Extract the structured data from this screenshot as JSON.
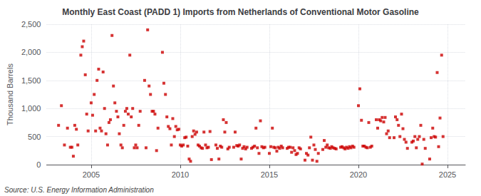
{
  "chart_data": {
    "type": "scatter",
    "title": "Monthly East Coast (PADD 1) Imports from Netherlands of Conventional Motor Gasoline",
    "ylabel": "Thousand Barrels",
    "annotation": "Source: U.S. Energy Information Administration",
    "color": "#cc0000",
    "marker": "square",
    "grid": true,
    "xlim": [
      2002.5,
      2026.0
    ],
    "xticks": [
      2005,
      2010,
      2015,
      2020,
      2025
    ],
    "ylim": [
      0,
      2500
    ],
    "yticks": [
      0,
      500,
      {
        "value": 1000,
        "label": "1,000"
      },
      {
        "value": 1500,
        "label": "1,500"
      },
      {
        "value": 2000,
        "label": "2,000"
      },
      {
        "value": 2500,
        "label": "2,500"
      }
    ],
    "x": [
      2003.17,
      2003.33,
      2003.5,
      2003.67,
      2003.83,
      2003.92,
      2004.0,
      2004.08,
      2004.17,
      2004.25,
      2004.42,
      2004.5,
      2004.58,
      2004.67,
      2004.75,
      2004.83,
      2005.0,
      2005.08,
      2005.17,
      2005.25,
      2005.33,
      2005.42,
      2005.5,
      2005.58,
      2005.67,
      2005.75,
      2005.83,
      2005.92,
      2006.0,
      2006.08,
      2006.17,
      2006.25,
      2006.33,
      2006.42,
      2006.5,
      2006.58,
      2006.67,
      2006.75,
      2006.83,
      2006.92,
      2007.0,
      2007.08,
      2007.17,
      2007.25,
      2007.33,
      2007.42,
      2007.5,
      2007.58,
      2007.67,
      2007.75,
      2008.0,
      2008.08,
      2008.17,
      2008.25,
      2008.33,
      2008.42,
      2008.5,
      2008.58,
      2008.67,
      2008.75,
      2009.0,
      2009.08,
      2009.17,
      2009.25,
      2009.33,
      2009.42,
      2009.5,
      2009.58,
      2009.67,
      2009.75,
      2009.83,
      2009.92,
      2010.0,
      2010.08,
      2010.17,
      2010.25,
      2010.33,
      2010.42,
      2010.5,
      2010.58,
      2010.67,
      2010.75,
      2010.83,
      2010.92,
      2011.0,
      2011.08,
      2011.17,
      2011.25,
      2011.33,
      2011.42,
      2011.5,
      2011.58,
      2011.67,
      2011.75,
      2012.0,
      2012.08,
      2012.17,
      2012.25,
      2012.33,
      2012.42,
      2012.5,
      2012.58,
      2012.67,
      2012.75,
      2013.0,
      2013.08,
      2013.17,
      2013.25,
      2013.33,
      2013.42,
      2013.5,
      2013.58,
      2013.67,
      2013.75,
      2014.0,
      2014.08,
      2014.17,
      2014.25,
      2014.33,
      2014.42,
      2014.5,
      2014.58,
      2014.67,
      2014.75,
      2015.0,
      2015.08,
      2015.17,
      2015.25,
      2015.33,
      2015.42,
      2015.5,
      2015.58,
      2015.67,
      2015.75,
      2016.0,
      2016.08,
      2016.17,
      2016.25,
      2016.33,
      2016.42,
      2016.5,
      2016.58,
      2016.67,
      2016.75,
      2017.0,
      2017.08,
      2017.17,
      2017.25,
      2017.33,
      2017.42,
      2017.5,
      2017.58,
      2017.67,
      2017.75,
      2018.0,
      2018.08,
      2018.17,
      2018.25,
      2018.33,
      2018.42,
      2018.5,
      2018.58,
      2018.67,
      2018.75,
      2019.0,
      2019.08,
      2019.17,
      2019.25,
      2019.33,
      2019.42,
      2019.5,
      2019.58,
      2019.67,
      2019.75,
      2020.0,
      2020.08,
      2020.17,
      2020.25,
      2020.33,
      2020.42,
      2020.5,
      2020.58,
      2020.67,
      2020.75,
      2021.0,
      2021.08,
      2021.17,
      2021.25,
      2021.33,
      2021.42,
      2021.5,
      2021.58,
      2021.67,
      2021.75,
      2022.0,
      2022.08,
      2022.17,
      2022.25,
      2022.33,
      2022.42,
      2022.5,
      2022.58,
      2022.67,
      2022.75,
      2023.0,
      2023.08,
      2023.17,
      2023.25,
      2023.33,
      2023.42,
      2023.5,
      2023.58,
      2023.67,
      2023.75,
      2024.0,
      2024.08,
      2024.17,
      2024.25,
      2024.33,
      2024.42,
      2024.5,
      2024.58,
      2024.67,
      2024.75
    ],
    "values": [
      700,
      1050,
      350,
      650,
      310,
      310,
      150,
      700,
      630,
      350,
      1950,
      2100,
      2200,
      1600,
      900,
      600,
      1100,
      880,
      1250,
      600,
      1500,
      1700,
      650,
      600,
      1650,
      1000,
      550,
      350,
      750,
      800,
      2300,
      1400,
      1100,
      950,
      850,
      550,
      350,
      300,
      700,
      950,
      1000,
      900,
      1950,
      850,
      1000,
      300,
      350,
      300,
      700,
      950,
      1500,
      300,
      2400,
      1400,
      1250,
      950,
      950,
      900,
      250,
      650,
      2000,
      1450,
      1250,
      850,
      680,
      640,
      350,
      820,
      500,
      680,
      620,
      630,
      350,
      330,
      350,
      480,
      490,
      330,
      100,
      60,
      500,
      600,
      540,
      580,
      350,
      330,
      300,
      290,
      580,
      350,
      300,
      310,
      590,
      90,
      350,
      290,
      100,
      330,
      310,
      800,
      580,
      750,
      280,
      310,
      310,
      580,
      340,
      330,
      350,
      100,
      290,
      320,
      280,
      310,
      290,
      310,
      330,
      650,
      300,
      200,
      780,
      320,
      300,
      310,
      200,
      320,
      650,
      310,
      300,
      240,
      310,
      290,
      330,
      300,
      290,
      310,
      310,
      220,
      300,
      250,
      180,
      200,
      300,
      280,
      80,
      200,
      170,
      300,
      490,
      80,
      350,
      270,
      60,
      200,
      270,
      430,
      310,
      350,
      300,
      290,
      320,
      300,
      290,
      280,
      310,
      320,
      300,
      280,
      310,
      290,
      320,
      300,
      330,
      310,
      1050,
      1350,
      790,
      330,
      330,
      310,
      300,
      750,
      310,
      330,
      800,
      650,
      800,
      780,
      840,
      760,
      840,
      550,
      600,
      480,
      480,
      850,
      800,
      700,
      500,
      900,
      640,
      450,
      400,
      290,
      400,
      420,
      500,
      300,
      450,
      500,
      700,
      10,
      450,
      290,
      100,
      480,
      650,
      500,
      490,
      1640,
      320,
      830,
      1950,
      500
    ]
  }
}
